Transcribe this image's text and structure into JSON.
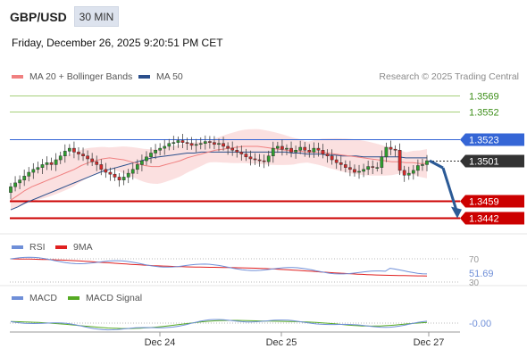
{
  "header": {
    "pair": "GBP/USD",
    "timeframe": "30 MIN",
    "datetime": "Friday, December 26, 2025 9:20:51 PM CET",
    "credit": "Research © 2025 Trading Central"
  },
  "legends": {
    "price": [
      {
        "label": "MA 20 + Bollinger Bands",
        "color": "#f08080"
      },
      {
        "label": "MA 50",
        "color": "#2b4f8c"
      }
    ],
    "rsi": [
      {
        "label": "RSI",
        "color": "#6f8fd8"
      },
      {
        "label": "9MA",
        "color": "#e02020"
      }
    ],
    "macd": [
      {
        "label": "MACD",
        "color": "#6f8fd8"
      },
      {
        "label": "MACD Signal",
        "color": "#55aa22"
      }
    ]
  },
  "chart_data": [
    {
      "type": "candlestick",
      "panel": "price",
      "ylim": [
        1.3425,
        1.358
      ],
      "xlabels": [
        "Dec 24",
        "Dec 25",
        "Dec 27"
      ],
      "levels": [
        {
          "value": 1.3569,
          "label": "1.3569",
          "kind": "resistance",
          "color": "#a6d07a",
          "text_color": "#3e8f1a"
        },
        {
          "value": 1.3552,
          "label": "1.3552",
          "kind": "resistance",
          "color": "#a6d07a",
          "text_color": "#3e8f1a"
        },
        {
          "value": 1.3523,
          "label": "1.3523",
          "kind": "pivot",
          "color": "#3566d6",
          "text_color": "#ffffff"
        },
        {
          "value": 1.3501,
          "label": "1.3501",
          "kind": "last",
          "color": "#333333",
          "text_color": "#ffffff"
        },
        {
          "value": 1.3459,
          "label": "1.3459",
          "kind": "support",
          "color": "#cc0000",
          "text_color": "#ffffff"
        },
        {
          "value": 1.3442,
          "label": "1.3442",
          "kind": "support",
          "color": "#cc0000",
          "text_color": "#ffffff"
        }
      ],
      "closes": [
        1.3474,
        1.3478,
        1.3481,
        1.3485,
        1.3489,
        1.3492,
        1.3494,
        1.3497,
        1.3499,
        1.3497,
        1.3502,
        1.3506,
        1.3511,
        1.3514,
        1.351,
        1.3508,
        1.3506,
        1.3503,
        1.35,
        1.3497,
        1.3492,
        1.3489,
        1.3487,
        1.3484,
        1.3481,
        1.3484,
        1.3488,
        1.3492,
        1.3497,
        1.3501,
        1.3505,
        1.3509,
        1.3512,
        1.3514,
        1.3516,
        1.3519,
        1.352,
        1.3522,
        1.352,
        1.3519,
        1.3517,
        1.3518,
        1.3519,
        1.3521,
        1.352,
        1.3518,
        1.3519,
        1.3516,
        1.3514,
        1.3512,
        1.351,
        1.3508,
        1.3505,
        1.3503,
        1.3502,
        1.3501,
        1.35,
        1.3506,
        1.3514,
        1.3516,
        1.3513,
        1.3514,
        1.351,
        1.3512,
        1.3515,
        1.3512,
        1.351,
        1.3514,
        1.3512,
        1.3508,
        1.3506,
        1.3502,
        1.3499,
        1.3497,
        1.3494,
        1.3492,
        1.3489,
        1.349,
        1.3492,
        1.3495,
        1.3494,
        1.3494,
        1.3505,
        1.3515,
        1.3513,
        1.3512,
        1.3491,
        1.3486,
        1.3488,
        1.3491,
        1.3496,
        1.3497,
        1.3501
      ],
      "ma20": [
        1.346,
        1.3465,
        1.347,
        1.3474,
        1.3477,
        1.348,
        1.3483,
        1.3486,
        1.3489,
        1.3492,
        1.3496,
        1.3499,
        1.3501,
        1.3503,
        1.3504,
        1.3503,
        1.3502,
        1.35,
        1.3498,
        1.3496,
        1.3495,
        1.3495,
        1.3497,
        1.3499,
        1.3501,
        1.3504,
        1.3506,
        1.3508,
        1.351,
        1.3512,
        1.3513,
        1.3514,
        1.3515,
        1.3516,
        1.3516,
        1.3516,
        1.3515,
        1.3514,
        1.3513,
        1.3512,
        1.3511,
        1.3511,
        1.351,
        1.351,
        1.351,
        1.3509,
        1.3508,
        1.3507,
        1.3506,
        1.3505,
        1.3504,
        1.3503,
        1.3502,
        1.3501,
        1.35,
        1.35,
        1.3499,
        1.3499,
        1.3498,
        1.3498
      ],
      "ma50": [
        1.345,
        1.3453,
        1.3457,
        1.346,
        1.3463,
        1.3466,
        1.3469,
        1.3472,
        1.3475,
        1.3478,
        1.3481,
        1.3484,
        1.3487,
        1.349,
        1.3492,
        1.3494,
        1.3496,
        1.3498,
        1.35,
        1.3502,
        1.3504,
        1.3505,
        1.3506,
        1.3507,
        1.3508,
        1.3509,
        1.3509,
        1.351,
        1.351,
        1.351,
        1.351,
        1.351,
        1.351,
        1.351,
        1.351,
        1.351,
        1.351,
        1.351,
        1.351,
        1.351,
        1.3509,
        1.3509,
        1.3508,
        1.3508,
        1.3508,
        1.3507,
        1.3507,
        1.3506,
        1.3506,
        1.3506,
        1.3505,
        1.3505,
        1.3505,
        1.3505,
        1.3505,
        1.3505,
        1.3504,
        1.3504,
        1.3504,
        1.3504
      ],
      "bb_width": 0.0018,
      "projection": {
        "from": 1.3501,
        "to": 1.3442
      }
    },
    {
      "type": "line",
      "panel": "rsi",
      "ylim": [
        30,
        70
      ],
      "ticks": [
        "70",
        "30"
      ],
      "last_value_label": "51.69",
      "series": [
        {
          "name": "RSI"
        },
        {
          "name": "9MA"
        }
      ]
    },
    {
      "type": "line",
      "panel": "macd",
      "zero_label": "-0.00",
      "series": [
        {
          "name": "MACD"
        },
        {
          "name": "MACD Signal"
        }
      ]
    }
  ]
}
